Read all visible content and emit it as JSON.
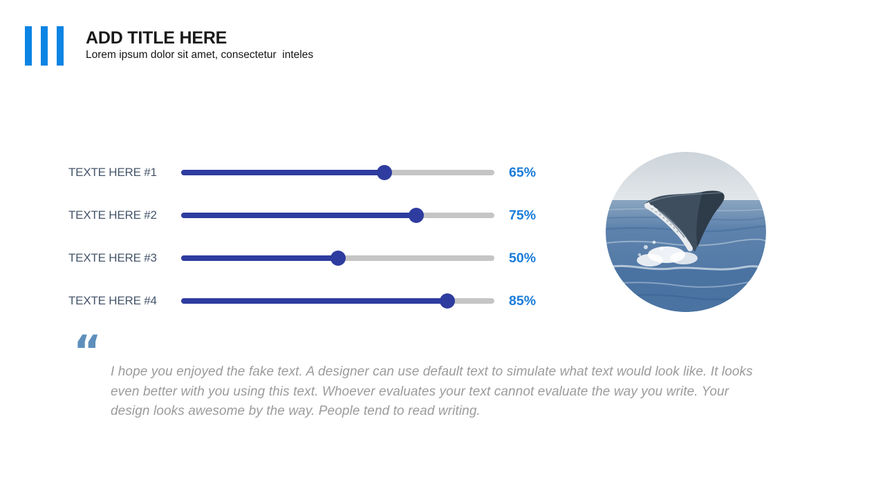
{
  "header": {
    "title": "ADD TITLE HERE",
    "subtitle": "Lorem ipsum dolor sit amet, consectetur  inteles"
  },
  "sliders": [
    {
      "label": "TEXTE HERE #1",
      "value": 65,
      "display": "65%"
    },
    {
      "label": "TEXTE HERE #2",
      "value": 75,
      "display": "75%"
    },
    {
      "label": "TEXTE HERE #3",
      "value": 50,
      "display": "50%"
    },
    {
      "label": "TEXTE HERE #4",
      "value": 85,
      "display": "85%"
    }
  ],
  "quote": {
    "mark": "“",
    "text": "I hope you enjoyed the fake text. A designer can use default text to simulate what text would look like. It looks even better with you using this text. Whoever evaluates your text cannot evaluate the way you write. Your design looks awesome by the way. People tend to read writing."
  },
  "photo": {
    "description": "humpback whale breaching out of the ocean"
  },
  "colors": {
    "logo_blue": "#0c84e4",
    "slider_fill": "#2e3c9f",
    "slider_track": "#c5c5c5",
    "percent_blue": "#1a7cd9",
    "label_slate": "#44546a",
    "quote_mark_blue": "#5e8fbc",
    "quote_text_gray": "#9b9b9b"
  }
}
